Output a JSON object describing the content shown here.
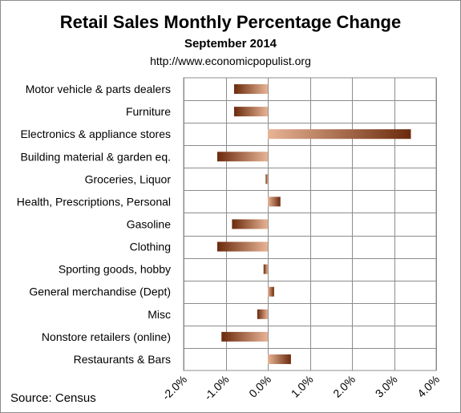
{
  "header": {
    "title": "Retail Sales Monthly Percentage Change",
    "subtitle": "September 2014",
    "url": "http://www.economicpopulist.org"
  },
  "footer": {
    "source": "Source:  Census"
  },
  "colors": {
    "bar_dark": "#6b2a0c",
    "bar_light": "#e8b496",
    "grid": "#8c8c8c"
  },
  "chart_data": {
    "type": "bar",
    "orientation": "horizontal",
    "title": "Retail Sales Monthly Percentage Change",
    "subtitle": "September 2014",
    "categories": [
      "Motor vehicle & parts dealers",
      "Furniture",
      "Electronics & appliance stores",
      "Building material & garden eq.",
      "Groceries, Liquor",
      "Health, Prescriptions, Personal",
      "Gasoline",
      "Clothing",
      "Sporting goods, hobby",
      "General merchandise (Dept)",
      "Misc",
      "Nonstore retailers (online)",
      "Restaurants & Bars"
    ],
    "values": [
      -0.8,
      -0.8,
      3.4,
      -1.2,
      -0.05,
      0.3,
      -0.85,
      -1.2,
      -0.1,
      0.15,
      -0.25,
      -1.1,
      0.55
    ],
    "xlim": [
      -2.0,
      4.0
    ],
    "xticks": [
      -2.0,
      -1.0,
      0.0,
      1.0,
      2.0,
      3.0,
      4.0
    ],
    "tick_labels": [
      "-2.0%",
      "-1.0%",
      "0.0%",
      "1.0%",
      "2.0%",
      "3.0%",
      "4.0%"
    ],
    "grid": true,
    "legend": "none"
  }
}
